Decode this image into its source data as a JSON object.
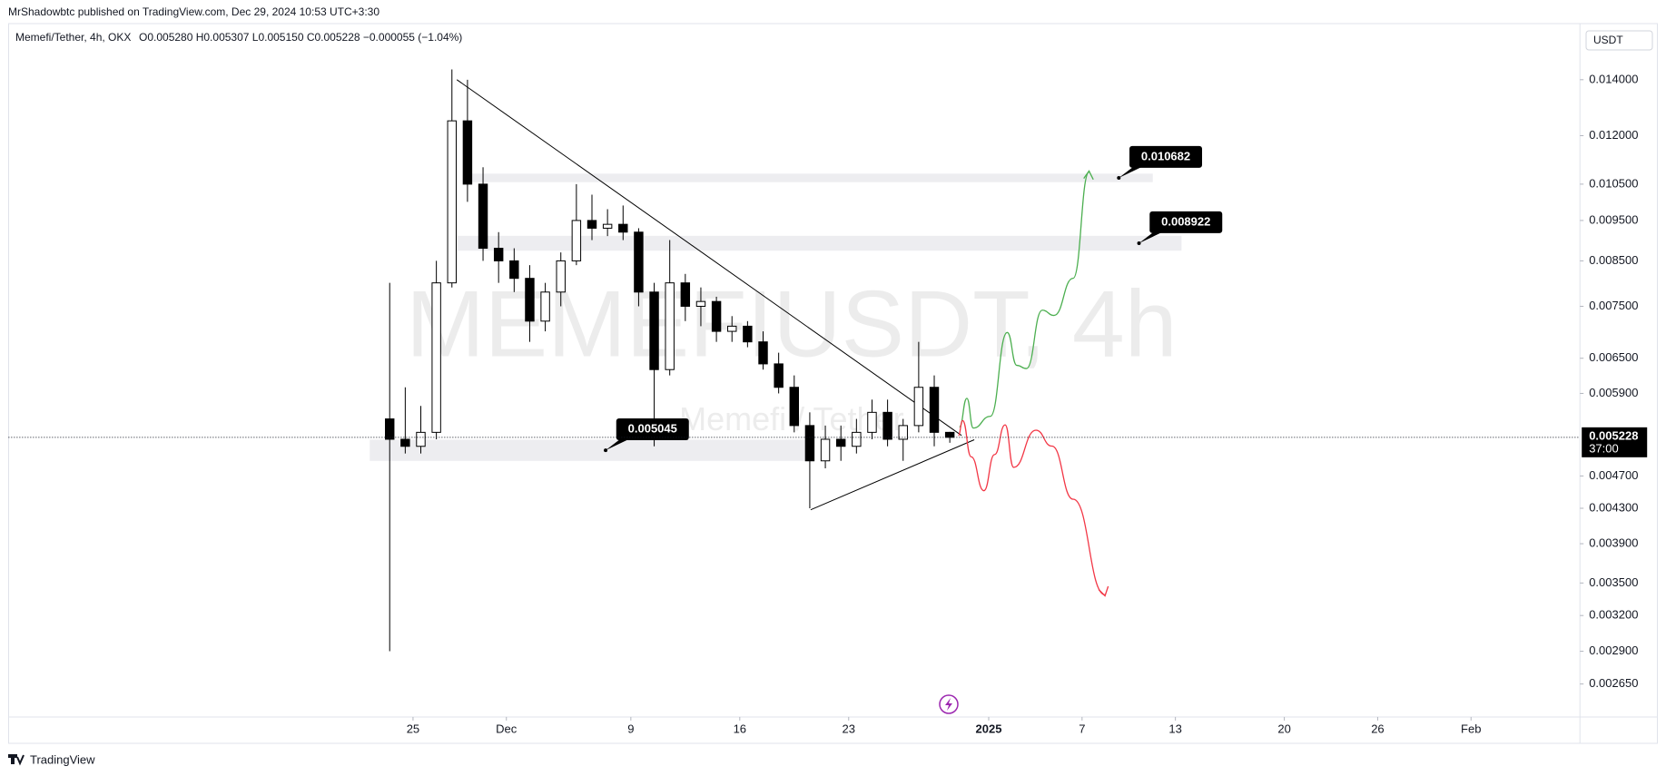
{
  "header": "MrShadowbtc published on TradingView.com, Dec 29, 2024 10:53 UTC+3:30",
  "footer": "TradingView",
  "currency_button": "USDT",
  "chart_data": {
    "type": "candlestick",
    "title": "Memefi/Tether, 4h, OKX",
    "ohlc_legend": "O0.005280 H0.005307 L0.005150 C0.005228 −0.000055 (−1.04%)",
    "watermark": "MEMEFIUSDT, 4h",
    "watermark_subtitle": "Memefi / Tether",
    "log_scale": true,
    "x": [
      "2024-11-23",
      "2024-11-24",
      "2024-11-25",
      "2024-11-26",
      "2024-11-27",
      "2024-11-28",
      "2024-11-29",
      "2024-11-30",
      "2024-12-01",
      "2024-12-02",
      "2024-12-03",
      "2024-12-04",
      "2024-12-05",
      "2024-12-06",
      "2024-12-07",
      "2024-12-08",
      "2024-12-09",
      "2024-12-10",
      "2024-12-11",
      "2024-12-12",
      "2024-12-13",
      "2024-12-14",
      "2024-12-15",
      "2024-12-16",
      "2024-12-17",
      "2024-12-18",
      "2024-12-19",
      "2024-12-20",
      "2024-12-21",
      "2024-12-22",
      "2024-12-23",
      "2024-12-24",
      "2024-12-25",
      "2024-12-26",
      "2024-12-27",
      "2024-12-28",
      "2024-12-29"
    ],
    "open": [
      0.0055,
      0.0052,
      0.0051,
      0.0053,
      0.008,
      0.0125,
      0.0105,
      0.0088,
      0.0085,
      0.0081,
      0.0072,
      0.0078,
      0.0085,
      0.0095,
      0.0093,
      0.0094,
      0.0092,
      0.0078,
      0.0063,
      0.008,
      0.0075,
      0.0076,
      0.007,
      0.0071,
      0.0068,
      0.0064,
      0.006,
      0.0054,
      0.0049,
      0.0052,
      0.0051,
      0.0053,
      0.0056,
      0.0052,
      0.0054,
      0.006,
      0.0053
    ],
    "high": [
      0.008,
      0.006,
      0.0057,
      0.0085,
      0.0144,
      0.014,
      0.011,
      0.0092,
      0.0088,
      0.0084,
      0.008,
      0.0087,
      0.0105,
      0.0102,
      0.0098,
      0.0099,
      0.0093,
      0.008,
      0.009,
      0.0082,
      0.0079,
      0.0077,
      0.0073,
      0.0072,
      0.007,
      0.0066,
      0.0062,
      0.0056,
      0.0054,
      0.0054,
      0.0055,
      0.0058,
      0.0058,
      0.0055,
      0.0068,
      0.0062,
      0.005307
    ],
    "low": [
      0.0029,
      0.005,
      0.005,
      0.0052,
      0.0079,
      0.01,
      0.0085,
      0.008,
      0.0078,
      0.0068,
      0.007,
      0.0075,
      0.0084,
      0.009,
      0.0091,
      0.009,
      0.0075,
      0.0051,
      0.0062,
      0.0072,
      0.0071,
      0.0068,
      0.0068,
      0.0067,
      0.0063,
      0.0059,
      0.0053,
      0.0043,
      0.0048,
      0.0049,
      0.005,
      0.0052,
      0.0051,
      0.0049,
      0.0053,
      0.0051,
      0.00515
    ],
    "close": [
      0.0052,
      0.0051,
      0.0053,
      0.008,
      0.0125,
      0.0105,
      0.0088,
      0.0085,
      0.0081,
      0.0072,
      0.0078,
      0.0085,
      0.0095,
      0.0093,
      0.0094,
      0.0092,
      0.0078,
      0.0063,
      0.008,
      0.0075,
      0.0076,
      0.007,
      0.0071,
      0.0068,
      0.0064,
      0.006,
      0.0054,
      0.0049,
      0.0052,
      0.0051,
      0.0053,
      0.0056,
      0.0052,
      0.0054,
      0.006,
      0.0053,
      0.005228
    ],
    "up_color": "#ffffff",
    "down_color": "#000000",
    "xlim": [
      "2024-10-30",
      "2025-02-08"
    ],
    "xticks": [
      {
        "value": "2024-11-25",
        "label": "25"
      },
      {
        "value": "2024-12-01",
        "label": "Dec"
      },
      {
        "value": "2024-12-09",
        "label": "9"
      },
      {
        "value": "2024-12-16",
        "label": "16"
      },
      {
        "value": "2024-12-23",
        "label": "23"
      },
      {
        "value": "2025-01-01",
        "label": "2025"
      },
      {
        "value": "2025-01-07",
        "label": "7"
      },
      {
        "value": "2025-01-13",
        "label": "13"
      },
      {
        "value": "2025-01-20",
        "label": "20"
      },
      {
        "value": "2025-01-26",
        "label": "26"
      },
      {
        "value": "2025-02-01",
        "label": "Feb"
      }
    ],
    "ylim": [
      0.00242,
      0.01635
    ],
    "yticks": [
      {
        "value": 0.014,
        "label": "0.014000"
      },
      {
        "value": 0.012,
        "label": "0.012000"
      },
      {
        "value": 0.0105,
        "label": "0.010500"
      },
      {
        "value": 0.0095,
        "label": "0.009500"
      },
      {
        "value": 0.0085,
        "label": "0.008500"
      },
      {
        "value": 0.0075,
        "label": "0.007500"
      },
      {
        "value": 0.0065,
        "label": "0.006500"
      },
      {
        "value": 0.0059,
        "label": "0.005900"
      },
      {
        "value": 0.0047,
        "label": "0.004700"
      },
      {
        "value": 0.0043,
        "label": "0.004300"
      },
      {
        "value": 0.0039,
        "label": "0.003900"
      },
      {
        "value": 0.0035,
        "label": "0.003500"
      },
      {
        "value": 0.0032,
        "label": "0.003200"
      },
      {
        "value": 0.0029,
        "label": "0.002900"
      },
      {
        "value": 0.00265,
        "label": "0.002650"
      }
    ],
    "levels": [
      0.010682,
      0.008922,
      0.005045
    ],
    "current_price": {
      "value": 0.005228,
      "countdown": "37:00"
    }
  }
}
